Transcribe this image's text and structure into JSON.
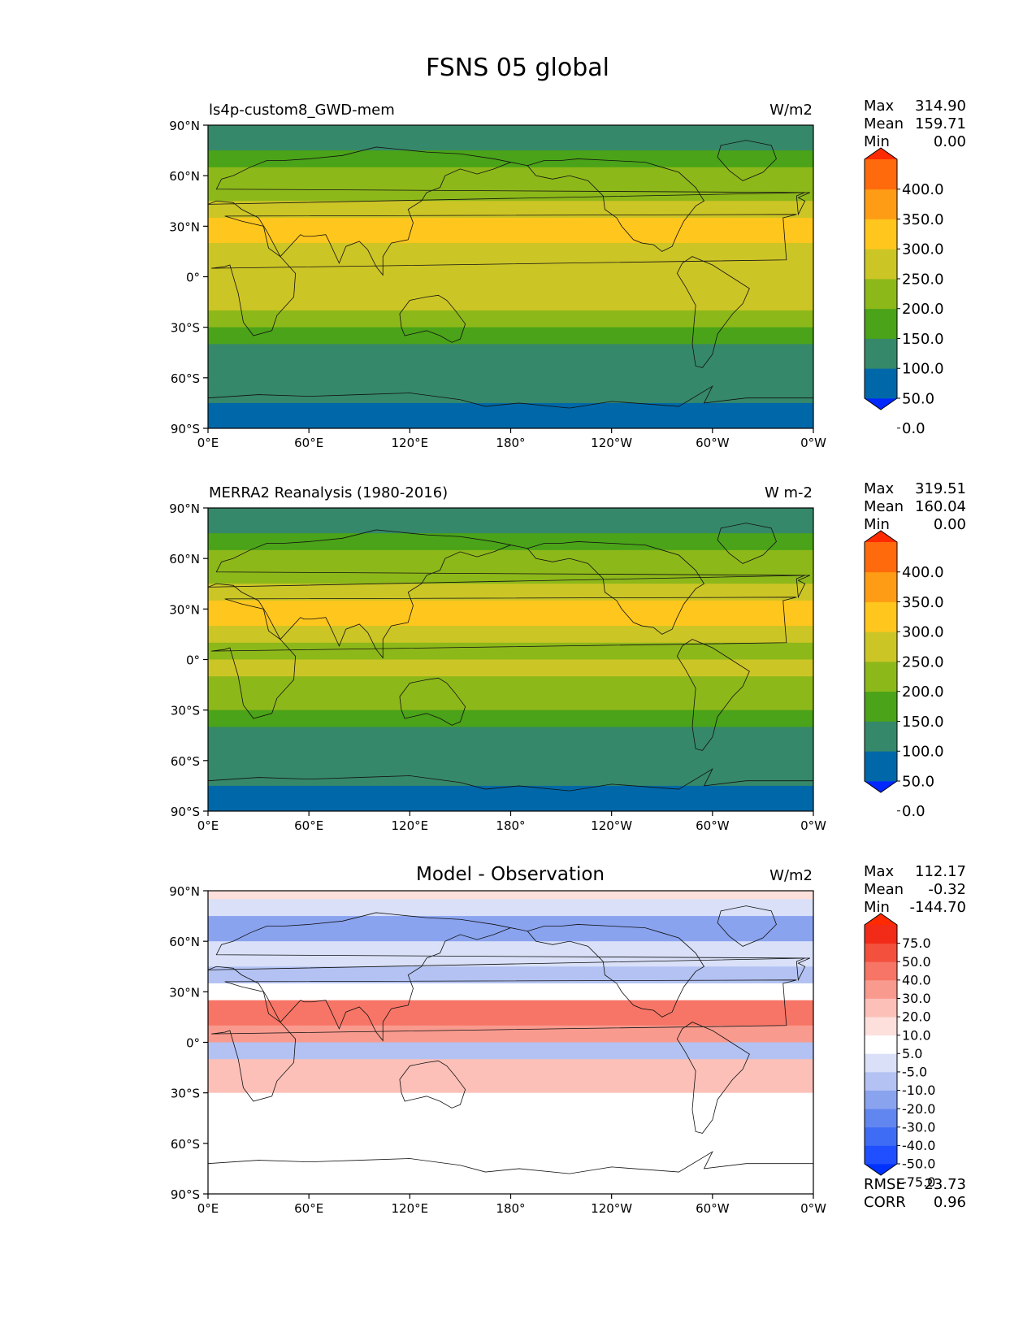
{
  "figure": {
    "title": "FSNS 05 global"
  },
  "chart_data": [
    {
      "type": "heatmap",
      "name": "model",
      "title_left": "ls4p-custom8_GWD-mem",
      "units": "W/m2",
      "stats": {
        "max_label": "Max",
        "max": "314.90",
        "mean_label": "Mean",
        "mean": "159.71",
        "min_label": "Min",
        "min": "0.00"
      },
      "colorbar": {
        "levels": [
          "400.0",
          "350.0",
          "300.0",
          "250.0",
          "200.0",
          "150.0",
          "100.0",
          "50.0",
          "0.0"
        ],
        "colors": [
          "#0028ff",
          "#0068a8",
          "#36886a",
          "#4aa318",
          "#8db81a",
          "#ccc526",
          "#ffc61d",
          "#ff9c15",
          "#ff6a0c",
          "#ff2a00"
        ]
      },
      "xaxis": {
        "ticks": [
          "0°E",
          "60°E",
          "120°E",
          "180°",
          "120°W",
          "60°W",
          "0°W"
        ]
      },
      "yaxis": {
        "ticks": [
          "90°N",
          "60°N",
          "30°N",
          "0°",
          "30°S",
          "60°S",
          "90°S"
        ]
      },
      "zonal_bands_deg_value": [
        [
          90,
          85,
          60
        ],
        [
          85,
          75,
          90
        ],
        [
          75,
          65,
          130
        ],
        [
          65,
          55,
          160
        ],
        [
          55,
          45,
          180
        ],
        [
          45,
          35,
          230
        ],
        [
          35,
          20,
          260
        ],
        [
          20,
          10,
          240
        ],
        [
          10,
          0,
          210
        ],
        [
          0,
          -10,
          220
        ],
        [
          -10,
          -20,
          230
        ],
        [
          -20,
          -30,
          190
        ],
        [
          -30,
          -40,
          120
        ],
        [
          -40,
          -45,
          90
        ],
        [
          -45,
          -75,
          60
        ],
        [
          -75,
          -90,
          10
        ]
      ]
    },
    {
      "type": "heatmap",
      "name": "observation",
      "title_left": "MERRA2 Reanalysis (1980-2016)",
      "units": "W m-2",
      "stats": {
        "max_label": "Max",
        "max": "319.51",
        "mean_label": "Mean",
        "mean": "160.04",
        "min_label": "Min",
        "min": "0.00"
      },
      "colorbar": {
        "levels": [
          "400.0",
          "350.0",
          "300.0",
          "250.0",
          "200.0",
          "150.0",
          "100.0",
          "50.0",
          "0.0"
        ],
        "colors": [
          "#0028ff",
          "#0068a8",
          "#36886a",
          "#4aa318",
          "#8db81a",
          "#ccc526",
          "#ffc61d",
          "#ff9c15",
          "#ff6a0c",
          "#ff2a00"
        ]
      },
      "xaxis": {
        "ticks": [
          "0°E",
          "60°E",
          "120°E",
          "180°",
          "120°W",
          "60°W",
          "0°W"
        ]
      },
      "yaxis": {
        "ticks": [
          "90°N",
          "60°N",
          "30°N",
          "0°",
          "30°S",
          "60°S",
          "90°S"
        ]
      },
      "zonal_bands_deg_value": [
        [
          90,
          85,
          60
        ],
        [
          85,
          75,
          90
        ],
        [
          75,
          65,
          130
        ],
        [
          65,
          55,
          160
        ],
        [
          55,
          45,
          175
        ],
        [
          45,
          35,
          200
        ],
        [
          35,
          20,
          255
        ],
        [
          20,
          10,
          230
        ],
        [
          10,
          0,
          190
        ],
        [
          0,
          -10,
          200
        ],
        [
          -10,
          -20,
          190
        ],
        [
          -20,
          -30,
          160
        ],
        [
          -30,
          -40,
          120
        ],
        [
          -40,
          -45,
          90
        ],
        [
          -45,
          -75,
          60
        ],
        [
          -75,
          -90,
          10
        ]
      ]
    },
    {
      "type": "heatmap",
      "name": "difference",
      "title_center": "Model - Observation",
      "units": "W/m2",
      "stats": {
        "max_label": "Max",
        "max": "112.17",
        "mean_label": "Mean",
        "mean": "-0.32",
        "min_label": "Min",
        "min": "-144.70"
      },
      "extra_stats": {
        "rmse_label": "RMSE",
        "rmse": "23.73",
        "corr_label": "CORR",
        "corr": "0.96"
      },
      "colorbar": {
        "levels": [
          "75.0",
          "50.0",
          "40.0",
          "30.0",
          "20.0",
          "10.0",
          "5.0",
          "-5.0",
          "-10.0",
          "-20.0",
          "-30.0",
          "-40.0",
          "-50.0",
          "-75.0"
        ],
        "colors": [
          "#0032ff",
          "#1f4fff",
          "#3f6cf4",
          "#6286ef",
          "#8aa3ef",
          "#b3c2f2",
          "#d9e0f8",
          "#ffffff",
          "#fde0dc",
          "#fcc0b8",
          "#f99a8e",
          "#f77566",
          "#f4503e",
          "#f22a18",
          "#ff2a00"
        ]
      },
      "xaxis": {
        "ticks": [
          "0°E",
          "60°E",
          "120°E",
          "180°",
          "120°W",
          "60°W",
          "0°W"
        ]
      },
      "yaxis": {
        "ticks": [
          "90°N",
          "60°N",
          "30°N",
          "0°",
          "30°S",
          "60°S",
          "90°S"
        ]
      },
      "zonal_bands_deg_value": [
        [
          90,
          85,
          5
        ],
        [
          85,
          75,
          -10
        ],
        [
          75,
          60,
          -25
        ],
        [
          60,
          45,
          -10
        ],
        [
          45,
          35,
          -15
        ],
        [
          35,
          25,
          -5
        ],
        [
          25,
          10,
          30
        ],
        [
          10,
          0,
          20
        ],
        [
          0,
          -10,
          -15
        ],
        [
          -10,
          -20,
          15
        ],
        [
          -20,
          -30,
          10
        ],
        [
          -30,
          -40,
          -5
        ],
        [
          -40,
          -90,
          0
        ]
      ]
    }
  ]
}
